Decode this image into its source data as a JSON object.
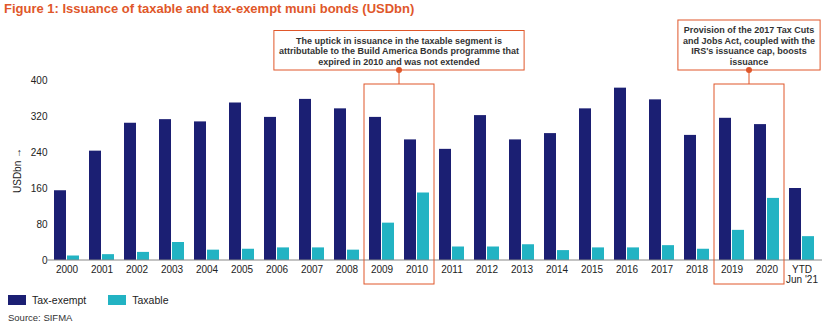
{
  "chart_data": {
    "type": "bar",
    "title": "Figure 1: Issuance of taxable and tax-exempt muni bonds (USDbn)",
    "y_label": "USDbn",
    "source": "Source: SIFMA",
    "categories": [
      "2000",
      "2001",
      "2002",
      "2003",
      "2004",
      "2005",
      "2006",
      "2007",
      "2008",
      "2009",
      "2010",
      "2011",
      "2012",
      "2013",
      "2014",
      "2015",
      "2016",
      "2017",
      "2018",
      "2019",
      "2020",
      "YTD\nJun '21"
    ],
    "series": [
      {
        "name": "Tax-exempt",
        "color": "#1b1f73",
        "values": [
          155,
          243,
          305,
          313,
          308,
          350,
          318,
          358,
          337,
          318,
          268,
          247,
          322,
          268,
          282,
          337,
          383,
          357,
          278,
          316,
          302,
          160
        ]
      },
      {
        "name": "Taxable",
        "color": "#22b3c3",
        "values": [
          10,
          13,
          18,
          40,
          23,
          25,
          28,
          28,
          23,
          83,
          150,
          30,
          30,
          35,
          22,
          28,
          28,
          33,
          25,
          67,
          138,
          53
        ]
      }
    ],
    "ylim": [
      0,
      400
    ],
    "yticks": [
      0,
      80,
      160,
      240,
      320,
      400
    ],
    "grid": false,
    "legend": "bottom-left",
    "annotations": [
      {
        "text": "The uptick in issuance in the taxable segment is attributable to the Build America Bonds programme that expired in 2010 and was not extended",
        "categories": [
          "2009",
          "2010"
        ]
      },
      {
        "text": "Provision of the 2017 Tax Cuts and Jobs Act, coupled with the IRS's issuance cap, boosts issuance",
        "categories": [
          "2019",
          "2020"
        ]
      }
    ]
  }
}
